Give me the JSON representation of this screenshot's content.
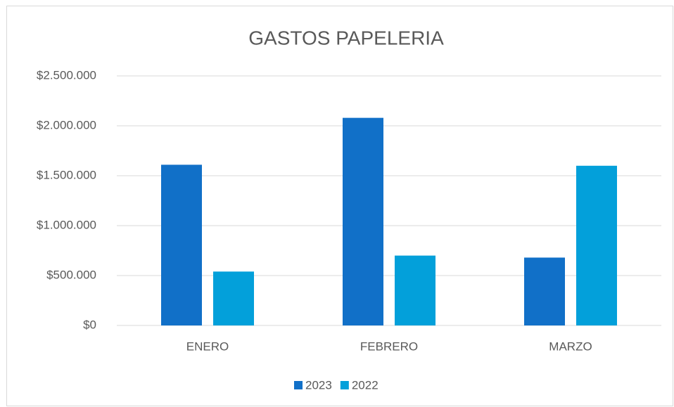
{
  "chart_data": {
    "type": "bar",
    "title": "GASTOS PAPELERIA",
    "categories": [
      "ENERO",
      "FEBRERO",
      "MARZO"
    ],
    "series": [
      {
        "name": "2023",
        "color": "#1170c8",
        "values": [
          1610000,
          2080000,
          680000
        ]
      },
      {
        "name": "2022",
        "color": "#03a0da",
        "values": [
          540000,
          700000,
          1600000
        ]
      }
    ],
    "ylim": [
      0,
      2500000
    ],
    "yticks": [
      {
        "value": 0,
        "label": "$0"
      },
      {
        "value": 500000,
        "label": "$500.000"
      },
      {
        "value": 1000000,
        "label": "$1.000.000"
      },
      {
        "value": 1500000,
        "label": "$1.500.000"
      },
      {
        "value": 2000000,
        "label": "$2.000.000"
      },
      {
        "value": 2500000,
        "label": "$2.500.000"
      }
    ],
    "grid": true,
    "legend": "bottom"
  }
}
